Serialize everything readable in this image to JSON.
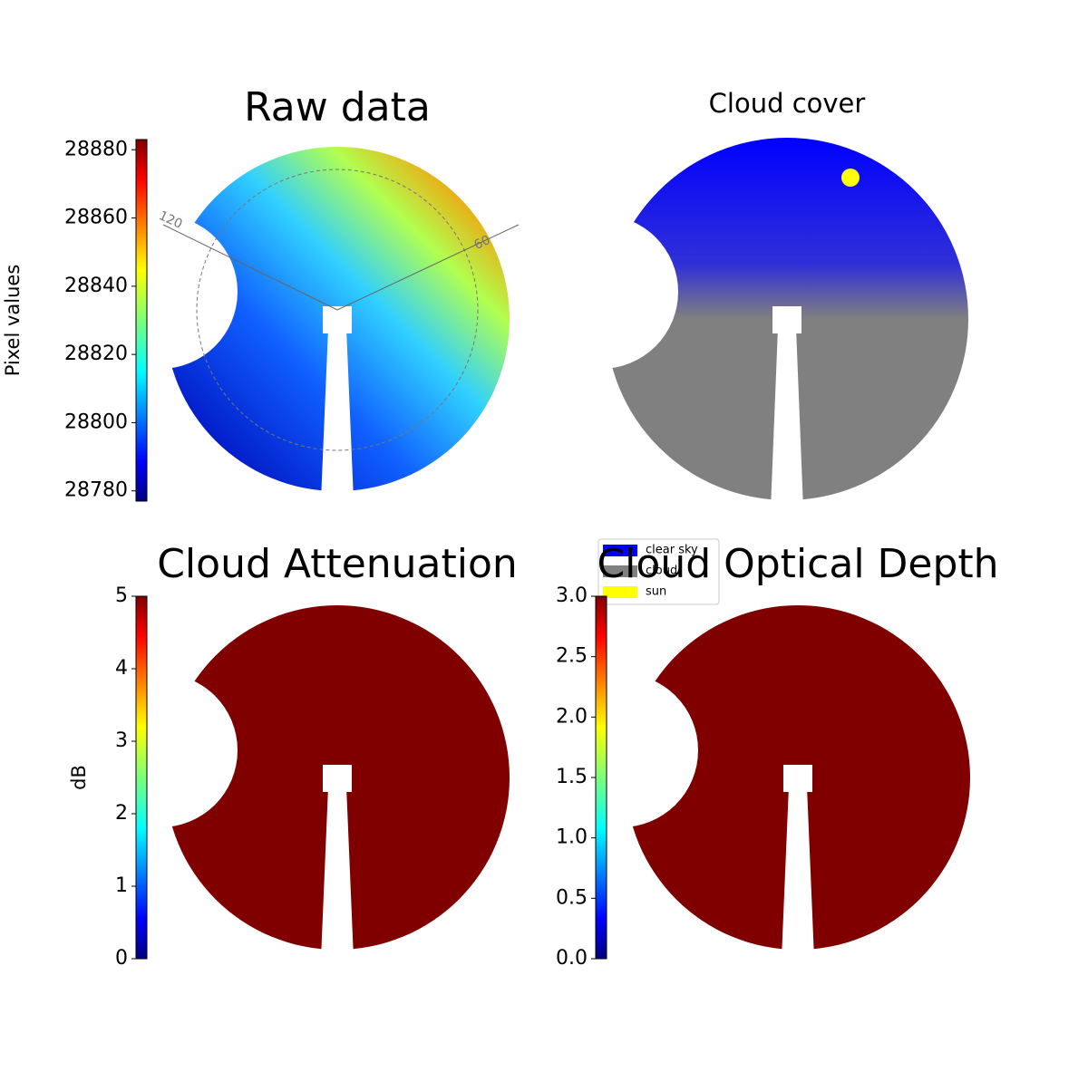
{
  "chart_data": [
    {
      "type": "image",
      "title": "Raw data",
      "colormap": "jet",
      "colorbar": {
        "label": "Pixel values",
        "ylim": [
          28777,
          28883
        ],
        "yticks": [
          28780,
          28800,
          28820,
          28840,
          28860,
          28880
        ]
      },
      "annotations": [
        "120",
        "60"
      ]
    },
    {
      "type": "image",
      "title": "Cloud cover",
      "legend": [
        {
          "name": "clear sky",
          "color": "#0000ff"
        },
        {
          "name": "cloud",
          "color": "#808080"
        },
        {
          "name": "sun",
          "color": "#ffff00"
        }
      ]
    },
    {
      "type": "image",
      "title": "Cloud Attenuation",
      "colormap": "jet",
      "colorbar": {
        "label": "dB",
        "ylim": [
          0,
          5
        ],
        "yticks": [
          0,
          1,
          2,
          3,
          4,
          5
        ]
      }
    },
    {
      "type": "image",
      "title": "Cloud Optical Depth",
      "colormap": "jet",
      "colorbar": {
        "ylim": [
          0,
          3
        ],
        "yticks": [
          {
            "value": 0,
            "label": "0.0"
          },
          0.5,
          {
            "value": 1,
            "label": "1.0"
          },
          1.5,
          {
            "value": 2,
            "label": "2.0"
          },
          2.5,
          {
            "value": 3,
            "label": "3.0"
          }
        ]
      }
    }
  ]
}
